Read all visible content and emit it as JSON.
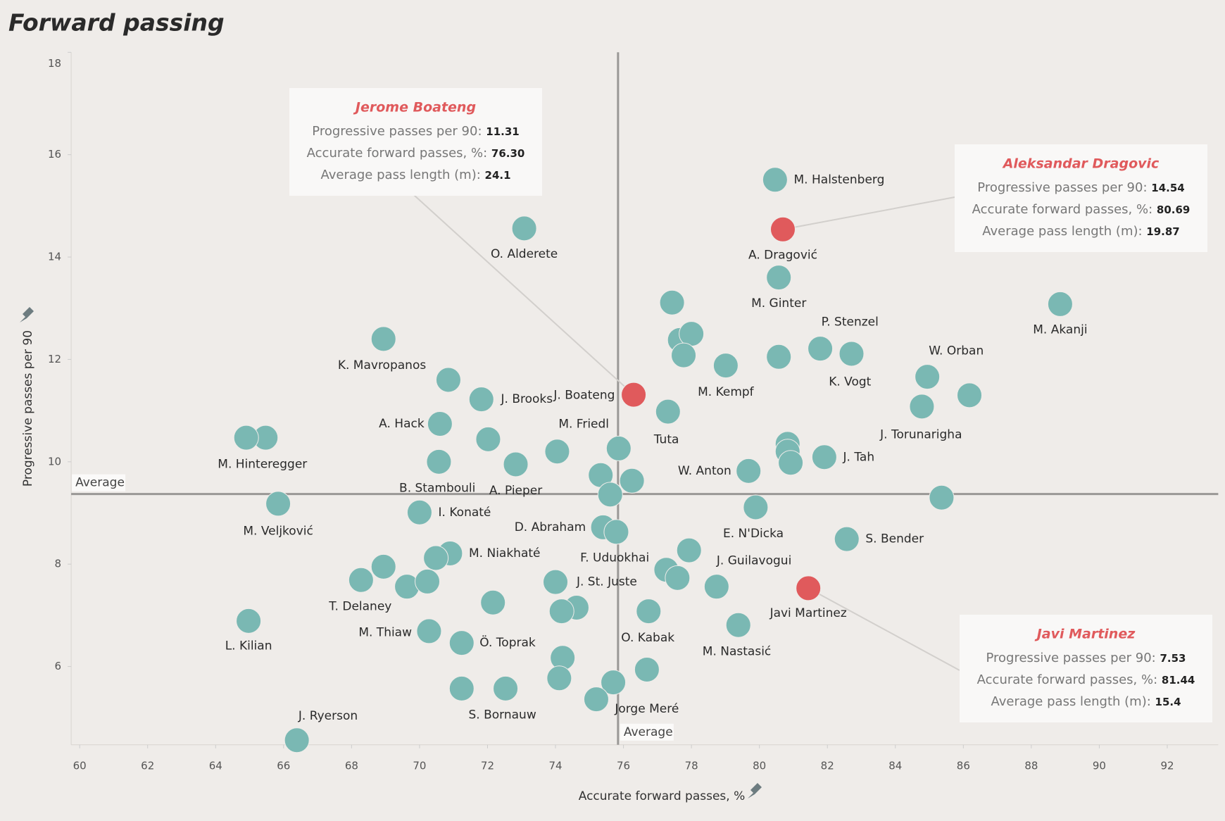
{
  "chart_data": {
    "type": "scatter",
    "title": "Forward passing",
    "x_label": "Accurate forward passes, %",
    "y_label": "Progressive passes per 90",
    "xlim": [
      59.75,
      93.5
    ],
    "ylim": [
      4.47,
      18
    ],
    "xticks": [
      60,
      62,
      64,
      66,
      68,
      70,
      72,
      74,
      76,
      78,
      80,
      82,
      84,
      86,
      88,
      90,
      92
    ],
    "yticks": [
      6,
      8,
      10,
      12,
      14,
      16,
      18
    ],
    "average_x": 75.84,
    "average_y": 9.37,
    "average_label": "Average",
    "x": [
      80.46,
      80.69,
      73.08,
      80.57,
      77.43,
      88.85,
      68.94,
      77.66,
      78.0,
      77.77,
      79.01,
      80.57,
      81.79,
      82.71,
      84.94,
      86.18,
      84.78,
      70.85,
      71.82,
      76.3,
      77.31,
      70.6,
      65.47,
      64.9,
      72.02,
      70.57,
      72.83,
      74.05,
      75.86,
      80.83,
      80.83,
      80.92,
      81.91,
      79.68,
      75.33,
      76.25,
      75.61,
      85.36,
      65.84,
      79.89,
      70.0,
      75.4,
      75.79,
      82.57,
      70.9,
      70.48,
      77.93,
      77.26,
      77.59,
      78.74,
      81.44,
      68.28,
      68.94,
      69.63,
      70.23,
      74.0,
      72.16,
      74.62,
      74.18,
      76.74,
      79.38,
      64.97,
      70.28,
      71.24,
      74.21,
      76.69,
      74.11,
      75.7,
      75.2,
      72.53,
      71.24,
      66.39
    ],
    "y": [
      15.51,
      14.54,
      14.56,
      13.6,
      13.11,
      13.08,
      12.4,
      12.38,
      12.5,
      12.08,
      11.88,
      12.05,
      12.21,
      12.11,
      11.66,
      11.3,
      11.08,
      11.6,
      11.22,
      11.31,
      10.98,
      10.74,
      10.47,
      10.47,
      10.44,
      10.0,
      9.95,
      10.2,
      10.26,
      10.35,
      10.2,
      9.98,
      10.09,
      9.82,
      9.74,
      9.63,
      9.36,
      9.3,
      9.18,
      9.11,
      9.01,
      8.72,
      8.63,
      8.49,
      8.21,
      8.12,
      8.27,
      7.89,
      7.73,
      7.56,
      7.53,
      7.69,
      7.95,
      7.56,
      7.66,
      7.65,
      7.25,
      7.15,
      7.08,
      7.08,
      6.81,
      6.89,
      6.69,
      6.46,
      6.17,
      5.94,
      5.77,
      5.69,
      5.36,
      5.57,
      5.57,
      4.56
    ],
    "labels": [
      "M. Halstenberg",
      "A. Dragović",
      "O. Alderete",
      "M. Ginter",
      null,
      "M. Akanji",
      "K. Mavropanos",
      null,
      null,
      null,
      "M. Kempf",
      null,
      "P. Stenzel",
      "K. Vogt",
      "W. Orban",
      null,
      "J. Torunarigha",
      null,
      "J. Brooks",
      "J. Boateng",
      "Tuta",
      "A. Hack",
      "M. Hinteregger",
      null,
      null,
      "B. Stambouli",
      "A. Pieper",
      "M. Friedl",
      null,
      null,
      null,
      null,
      "J. Tah",
      "W. Anton",
      null,
      null,
      null,
      null,
      "M. Veljković",
      "E. N'Dicka",
      "I. Konaté",
      "D. Abraham",
      null,
      "S. Bender",
      "M. Niakhaté",
      null,
      null,
      "F. Uduokhai",
      null,
      "J. Guilavogui",
      "Javi Martinez",
      "T. Delaney",
      null,
      null,
      null,
      "J. St. Juste",
      null,
      null,
      null,
      "O. Kabak",
      "M. Nastasić",
      "L. Kilian",
      "M. Thiaw",
      "Ö. Toprak",
      null,
      null,
      null,
      "Jorge Meré",
      null,
      "S. Bornauw",
      null,
      "J. Ryerson"
    ],
    "color": "#7ab8b3",
    "highlight_color": "#e05a5c",
    "highlight": [
      19,
      1,
      50
    ],
    "annotations": [
      {
        "name": "Jerome Boateng",
        "lines": [
          {
            "label": "Progressive passes per 90:",
            "value": "11.31"
          },
          {
            "label": "Accurate forward passes, %:",
            "value": "76.30"
          },
          {
            "label": "Average pass length (m):",
            "value": "24.1"
          }
        ]
      },
      {
        "name": "Aleksandar Dragovic",
        "lines": [
          {
            "label": "Progressive passes per 90:",
            "value": "14.54"
          },
          {
            "label": "Accurate forward passes, %:",
            "value": "80.69"
          },
          {
            "label": "Average pass length (m):",
            "value": "19.87"
          }
        ]
      },
      {
        "name": "Javi Martinez",
        "lines": [
          {
            "label": "Progressive passes per 90:",
            "value": "7.53"
          },
          {
            "label": "Accurate forward passes, %:",
            "value": "81.44"
          },
          {
            "label": "Average pass length (m):",
            "value": "15.4"
          }
        ]
      }
    ]
  }
}
